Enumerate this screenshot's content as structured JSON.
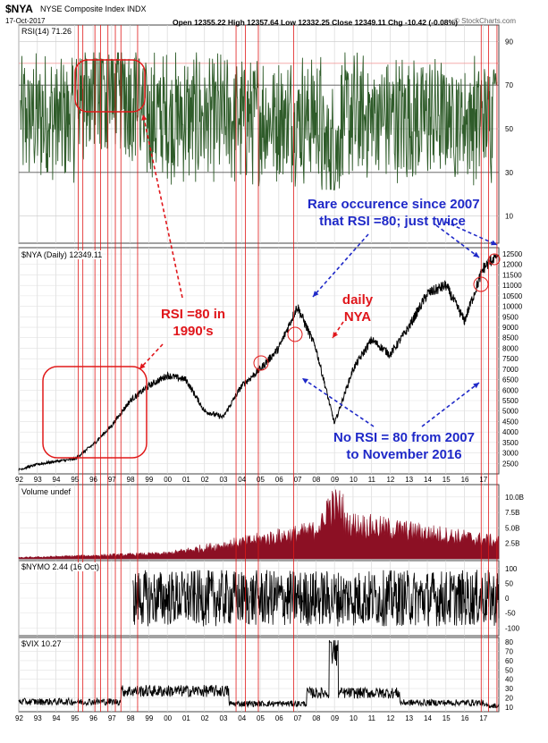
{
  "header": {
    "symbol": "$NYA",
    "name": "NYSE Composite Index INDX",
    "date": "17-Oct-2017",
    "ohlc": "Open 12355.22  High 12357.64  Low 12332.25  Close 12349.11  Chg -10.42 (-0.08%)",
    "watermark": "© StockCharts.com"
  },
  "panels": {
    "rsi": {
      "label": "RSI(14) 71.26",
      "ticks": [
        "90",
        "70",
        "50",
        "30",
        "10"
      ],
      "levels": [
        90,
        70,
        50,
        30,
        10
      ]
    },
    "price": {
      "label": "$NYA (Daily) 12349.11",
      "ticks": [
        "12500",
        "12000",
        "11500",
        "11000",
        "10500",
        "10000",
        "9500",
        "9000",
        "8500",
        "8000",
        "7500",
        "7000",
        "6500",
        "6000",
        "5500",
        "5000",
        "4500",
        "4000",
        "3500",
        "3000",
        "2500"
      ]
    },
    "volume": {
      "label": "Volume undef",
      "ticks": [
        "10.0B",
        "7.5B",
        "5.0B",
        "2.5B"
      ]
    },
    "nymo": {
      "label": "$NYMO 2.44 (16 Oct)",
      "ticks": [
        "100",
        "50",
        "0",
        "-50",
        "-100"
      ]
    },
    "vix": {
      "label": "$VIX 10.27",
      "ticks": [
        "80",
        "70",
        "60",
        "50",
        "40",
        "30",
        "20",
        "10"
      ]
    }
  },
  "x_axis_labels": [
    "92",
    "93",
    "94",
    "95",
    "96",
    "97",
    "98",
    "99",
    "00",
    "01",
    "02",
    "03",
    "04",
    "05",
    "06",
    "07",
    "08",
    "09",
    "10",
    "11",
    "12",
    "13",
    "14",
    "15",
    "16",
    "17"
  ],
  "annotations": {
    "rsi_1990s": [
      "RSI =80 in",
      "1990's"
    ],
    "daily_nya": [
      "daily",
      "NYA"
    ],
    "rare": [
      "Rare occurence since 2007",
      "that RSI =80; just twice"
    ],
    "no_rsi": [
      "No RSI = 80 from 2007",
      "to November 2016"
    ]
  },
  "chart_data": {
    "type": "line",
    "title": "$NYA NYSE Composite Index INDX",
    "x": [
      1992,
      1993,
      1994,
      1995,
      1996,
      1997,
      1998,
      1999,
      2000,
      2001,
      2002,
      2003,
      2004,
      2005,
      2006,
      2007,
      2008,
      2009,
      2010,
      2011,
      2012,
      2013,
      2014,
      2015,
      2016,
      2017
    ],
    "series": [
      {
        "name": "$NYA (Daily)",
        "values": [
          2200,
          2450,
          2600,
          2700,
          3400,
          4300,
          5500,
          6200,
          6700,
          6500,
          5000,
          4700,
          6200,
          7000,
          8000,
          10000,
          8000,
          4400,
          7000,
          8400,
          7700,
          9000,
          10600,
          11000,
          9300,
          11800
        ]
      }
    ],
    "ylim": [
      2000,
      12800
    ],
    "colors": {
      "rsi": "#2f5c2a",
      "volume": "#8c1024",
      "marker_lines": "#e01a1a",
      "annotation_red": "#e0161b",
      "annotation_blue": "#1f29c8"
    }
  }
}
